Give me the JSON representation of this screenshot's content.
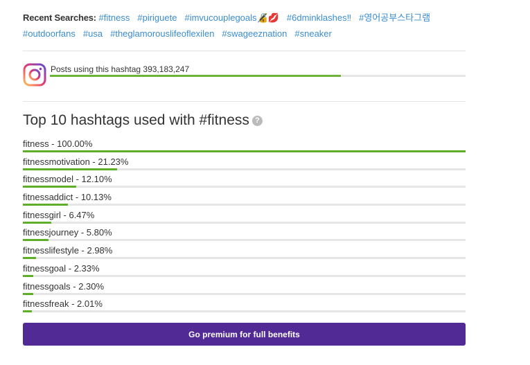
{
  "recent": {
    "label": "Recent Searches:",
    "items": [
      "#fitness",
      "#piriguete",
      "#imvucouplegoals🔏💋",
      "#6dminklashes‼",
      "#영어공부스타그램",
      "#outdoorfans",
      "#usa",
      "#theglamorouslifeoflexilen",
      "#swageeznation",
      "#sneaker"
    ]
  },
  "posts": {
    "text": "Posts using this hashtag 393,183,247",
    "bar_percent": 70
  },
  "top": {
    "title": "Top 10 hashtags used with #fitness",
    "help_icon": "question-circle-icon",
    "items": [
      {
        "label": "fitness - 100.00%",
        "percent": 100
      },
      {
        "label": "fitnessmotivation - 21.23%",
        "percent": 21.23
      },
      {
        "label": "fitnessmodel - 12.10%",
        "percent": 12.1
      },
      {
        "label": "fitnessaddict - 10.13%",
        "percent": 10.13
      },
      {
        "label": "fitnessgirl - 6.47%",
        "percent": 6.47
      },
      {
        "label": "fitnessjourney - 5.80%",
        "percent": 5.8
      },
      {
        "label": "fitnesslifestyle - 2.98%",
        "percent": 2.98
      },
      {
        "label": "fitnessgoal - 2.33%",
        "percent": 2.33
      },
      {
        "label": "fitnessgoals - 2.30%",
        "percent": 2.3
      },
      {
        "label": "fitnessfreak - 2.01%",
        "percent": 2.01
      }
    ]
  },
  "premium": {
    "label": "Go premium for full benefits"
  },
  "colors": {
    "link": "#3a8dd1",
    "bar": "#5fae28",
    "button": "#512a96"
  }
}
